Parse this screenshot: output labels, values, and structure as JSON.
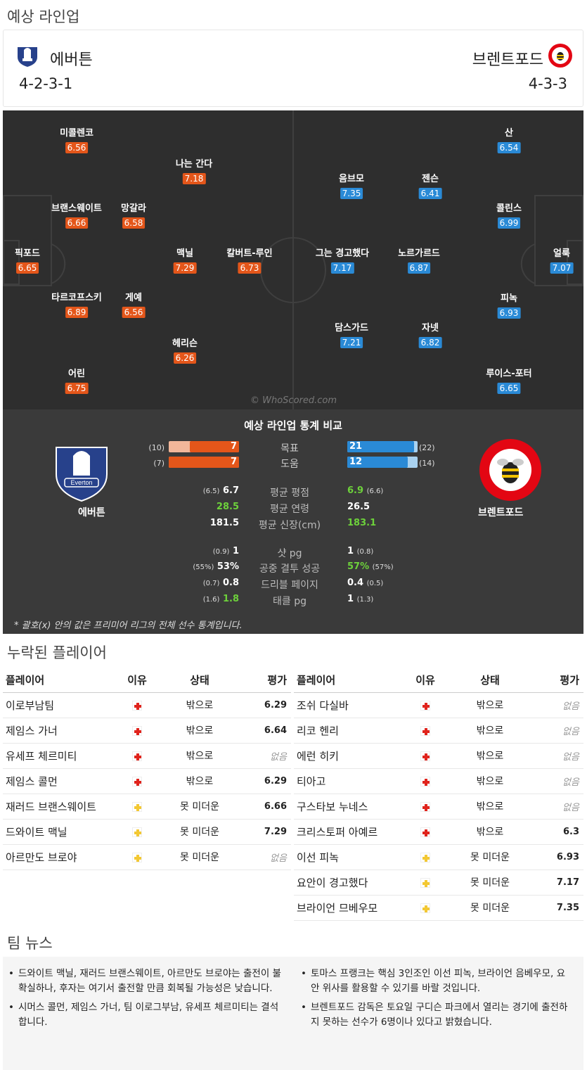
{
  "section_lineup_title": "예상 라인업",
  "home": {
    "name": "에버튼",
    "formation": "4-2-3-1",
    "color": "#e4561a"
  },
  "away": {
    "name": "브렌트포드",
    "formation": "4-3-3",
    "color": "#2a8ad6"
  },
  "pitch": {
    "home_players": [
      {
        "name": "미콜렌코",
        "rating": "6.56"
      },
      {
        "name": "나는 간다",
        "rating": "7.18"
      },
      {
        "name": "브랜스웨이트",
        "rating": "6.66"
      },
      {
        "name": "망갈라",
        "rating": "6.58"
      },
      {
        "name": "픽포드",
        "rating": "6.65"
      },
      {
        "name": "맥닐",
        "rating": "7.29"
      },
      {
        "name": "칼버트-루인",
        "rating": "6.73"
      },
      {
        "name": "타르코프스키",
        "rating": "6.89"
      },
      {
        "name": "게예",
        "rating": "6.56"
      },
      {
        "name": "헤리슨",
        "rating": "6.26"
      },
      {
        "name": "어린",
        "rating": "6.75"
      }
    ],
    "away_players": [
      {
        "name": "산",
        "rating": "6.54"
      },
      {
        "name": "음브모",
        "rating": "7.35"
      },
      {
        "name": "젠슨",
        "rating": "6.41"
      },
      {
        "name": "콜린스",
        "rating": "6.99"
      },
      {
        "name": "그는 경고했다",
        "rating": "7.17"
      },
      {
        "name": "노르가르드",
        "rating": "6.87"
      },
      {
        "name": "얼룩",
        "rating": "7.07"
      },
      {
        "name": "피녹",
        "rating": "6.93"
      },
      {
        "name": "담스가드",
        "rating": "7.21"
      },
      {
        "name": "자넷",
        "rating": "6.82"
      },
      {
        "name": "루이스-포터",
        "rating": "6.65"
      }
    ],
    "watermark": "© WhoScored.com"
  },
  "stats": {
    "title": "예상 라인업 통계 비교",
    "home_team": "에버튼",
    "away_team": "브렌트포드",
    "bars": [
      {
        "label": "목표",
        "home": "7",
        "home_sub": "(10)",
        "home_frac": 0.7,
        "away": "21",
        "away_sub": "(22)",
        "away_frac": 0.95
      },
      {
        "label": "도움",
        "home": "7",
        "home_sub": "(7)",
        "home_frac": 1.0,
        "away": "12",
        "away_sub": "(14)",
        "away_frac": 0.86
      }
    ],
    "rows": [
      {
        "label": "평균 평점",
        "home": "6.7",
        "home_sub": "(6.5)",
        "away": "6.9",
        "away_sub": "(6.6)"
      },
      {
        "label": "평균 연령",
        "home": "28.5",
        "home_sub": "",
        "away": "26.5",
        "away_sub": ""
      },
      {
        "label": "평균 신장(cm)",
        "home": "181.5",
        "home_sub": "",
        "away": "183.1",
        "away_sub": ""
      },
      {
        "label": "샷 pg",
        "home": "1",
        "home_sub": "(0.9)",
        "away": "1",
        "away_sub": "(0.8)"
      },
      {
        "label": "공중 결투 성공",
        "home": "53%",
        "home_sub": "(55%)",
        "away": "57%",
        "away_sub": "(57%)"
      },
      {
        "label": "드리블 페이지",
        "home": "0.8",
        "home_sub": "(0.7)",
        "away": "0.4",
        "away_sub": "(0.5)"
      },
      {
        "label": "태클 pg",
        "home": "1.8",
        "home_sub": "(1.6)",
        "away": "1",
        "away_sub": "(1.3)"
      }
    ],
    "note": "* 괄호(x) 안의 값은 프리미어 리그의 전체 선수 통계입니다."
  },
  "missing": {
    "title": "누락된 플레이어",
    "headers": {
      "player": "플레이어",
      "reason": "이유",
      "status": "상태",
      "rating": "평가"
    },
    "home": [
      {
        "name": "이로부남팀",
        "reason": "injury",
        "status": "밖으로",
        "rating": "6.29"
      },
      {
        "name": "제임스 가너",
        "reason": "injury",
        "status": "밖으로",
        "rating": "6.64"
      },
      {
        "name": "유세프 체르미티",
        "reason": "injury",
        "status": "밖으로",
        "rating": "없음"
      },
      {
        "name": "제임스 콜먼",
        "reason": "injury",
        "status": "밖으로",
        "rating": "6.29"
      },
      {
        "name": "재러드 브랜스웨이트",
        "reason": "doubtful",
        "status": "못 미더운",
        "rating": "6.66"
      },
      {
        "name": "드와이트 맥닐",
        "reason": "doubtful",
        "status": "못 미더운",
        "rating": "7.29"
      },
      {
        "name": "아르만도 브로야",
        "reason": "doubtful",
        "status": "못 미더운",
        "rating": "없음"
      }
    ],
    "away": [
      {
        "name": "조쉬 다실바",
        "reason": "injury",
        "status": "밖으로",
        "rating": "없음"
      },
      {
        "name": "리코 헨리",
        "reason": "injury",
        "status": "밖으로",
        "rating": "없음"
      },
      {
        "name": "에런 히키",
        "reason": "injury",
        "status": "밖으로",
        "rating": "없음"
      },
      {
        "name": "티아고",
        "reason": "injury",
        "status": "밖으로",
        "rating": "없음"
      },
      {
        "name": "구스타보 누네스",
        "reason": "injury",
        "status": "밖으로",
        "rating": "없음"
      },
      {
        "name": "크리스토퍼 아예르",
        "reason": "injury",
        "status": "밖으로",
        "rating": "6.3"
      },
      {
        "name": "이선 피녹",
        "reason": "doubtful",
        "status": "못 미더운",
        "rating": "6.93"
      },
      {
        "name": "요안이 경고했다",
        "reason": "doubtful",
        "status": "못 미더운",
        "rating": "7.17"
      },
      {
        "name": "브라이언 므베우모",
        "reason": "doubtful",
        "status": "못 미더운",
        "rating": "7.35"
      }
    ]
  },
  "news": {
    "title": "팀 뉴스",
    "home": [
      "드와이트 맥닐, 재러드 브랜스웨이트, 아르만도 브로야는 출전이 불확실하나, 후자는 여기서 출전할 만큼 회복될 가능성은 낮습니다.",
      "시머스 콜먼, 제임스 가너, 팀 이로그부남, 유세프 체르미티는 결석합니다."
    ],
    "away": [
      "토마스 프랭크는 핵심 3인조인 이선 피녹, 브라이언 음베우모, 요안 위사를 활용할 수 있기를 바랄 것입니다.",
      "브렌트포드 감독은 토요일 구디슨 파크에서 열리는 경기에 출전하지 못하는 선수가 6명이나 있다고 밝혔습니다."
    ]
  }
}
